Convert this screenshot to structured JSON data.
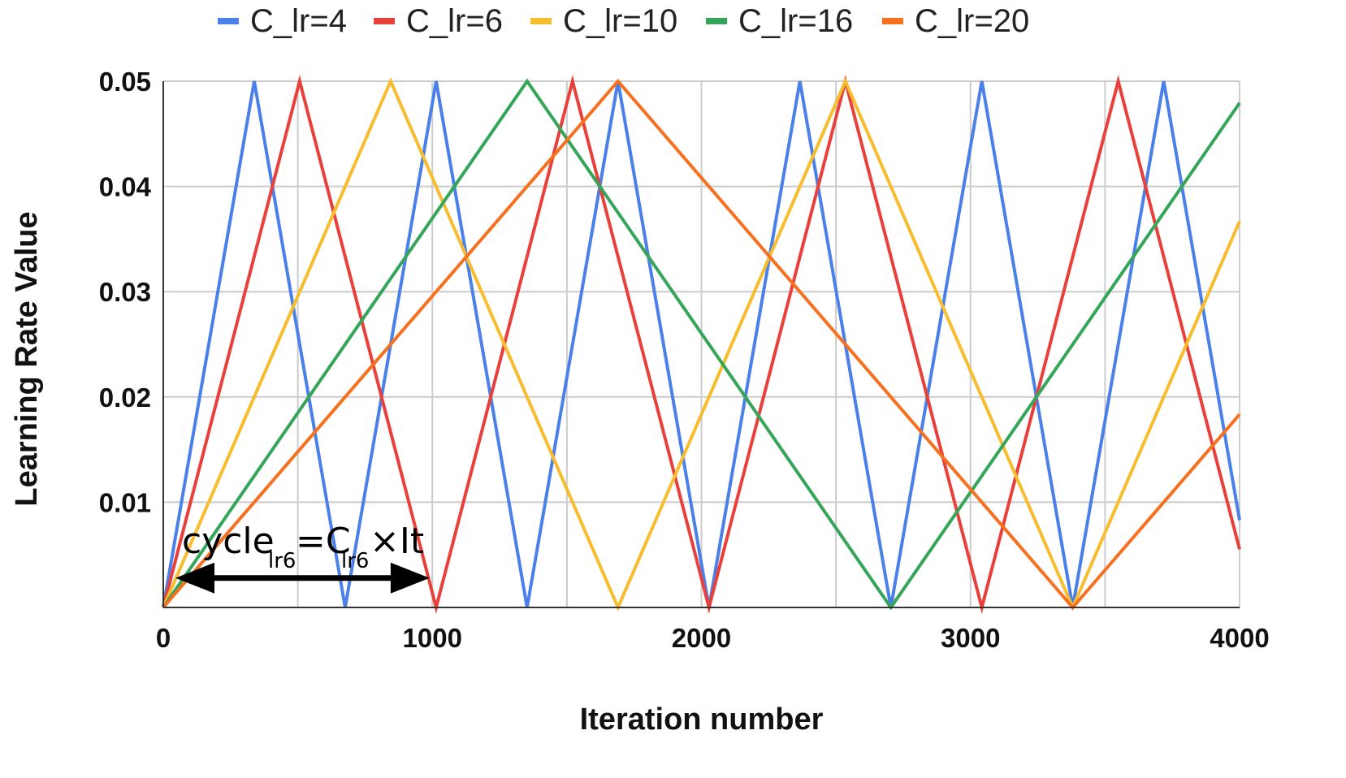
{
  "chart_data": {
    "type": "line",
    "title": "",
    "xlabel": "Iteration number",
    "ylabel": "Learning Rate Value",
    "xlim": [
      0,
      4000
    ],
    "ylim": [
      0,
      0.05
    ],
    "x_ticks": [
      {
        "value": 0,
        "label": "0"
      },
      {
        "value": 1000,
        "label": "1000"
      },
      {
        "value": 2000,
        "label": "2000"
      },
      {
        "value": 3000,
        "label": "3000"
      },
      {
        "value": 4000,
        "label": "4000"
      }
    ],
    "y_ticks": [
      {
        "value": 0.01,
        "label": "0.01"
      },
      {
        "value": 0.02,
        "label": "0.02"
      },
      {
        "value": 0.03,
        "label": "0.03"
      },
      {
        "value": 0.04,
        "label": "0.04"
      },
      {
        "value": 0.05,
        "label": "0.05"
      }
    ],
    "x_grid_minor_step": 500,
    "grid": true,
    "legend_position": "top",
    "min_value": 0,
    "max_value": 0.05,
    "iterations_per_step": 84.5,
    "series": [
      {
        "name": "C_lr=4",
        "color": "#4a80e8",
        "cycle_multiplier": 4,
        "half_cycle_iterations": 338
      },
      {
        "name": "C_lr=6",
        "color": "#e8413b",
        "cycle_multiplier": 6,
        "half_cycle_iterations": 507
      },
      {
        "name": "C_lr=10",
        "color": "#f8bd2e",
        "cycle_multiplier": 10,
        "half_cycle_iterations": 845
      },
      {
        "name": "C_lr=16",
        "color": "#35a55a",
        "cycle_multiplier": 16,
        "half_cycle_iterations": 1352
      },
      {
        "name": "C_lr=20",
        "color": "#f7701f",
        "cycle_multiplier": 20,
        "half_cycle_iterations": 1690
      }
    ],
    "annotation": {
      "text_main": "cycle",
      "text_sub1": "lr6",
      "text_eq": "=C",
      "text_sub2": "lr6",
      "text_tail": "×It",
      "arrow_from": 0,
      "arrow_to": 1014,
      "arrow_value": 0.0028
    }
  }
}
